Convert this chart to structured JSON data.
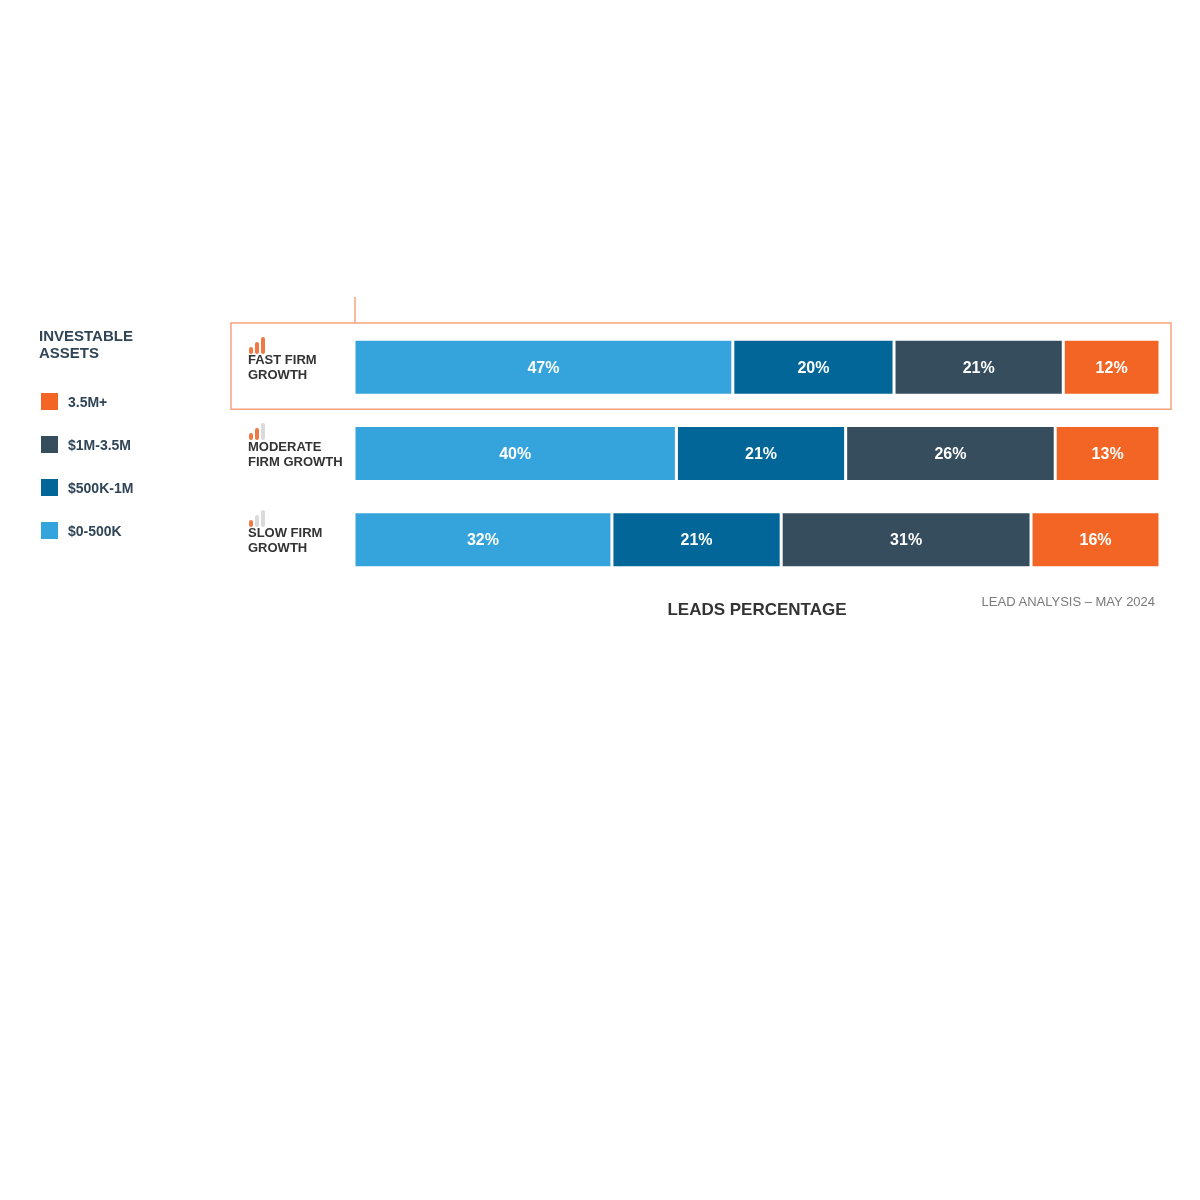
{
  "chart_data": {
    "type": "bar",
    "orientation": "horizontal",
    "stacked": true,
    "categories": [
      "FAST FIRM GROWTH",
      "MODERATE FIRM GROWTH",
      "SLOW FIRM GROWTH"
    ],
    "xlabel": "LEADS PERCENTAGE",
    "legend_title": "INVESTABLE ASSETS",
    "legend": "left",
    "tick_labels": "y",
    "xlim": [
      0,
      100
    ],
    "annotations": [
      "LEAD ANALYSIS – MAY 2024"
    ],
    "series": [
      {
        "name": "$0-500K",
        "color": "#35a4dd",
        "values": [
          47,
          40,
          32
        ],
        "value_labels": [
          "47%",
          "40%",
          "32%"
        ]
      },
      {
        "name": "$500K-1M",
        "color": "#036699",
        "values": [
          20,
          21,
          21
        ],
        "value_labels": [
          "20%",
          "21%",
          "21%"
        ]
      },
      {
        "name": "$1M-3.5M",
        "color": "#364d5e",
        "values": [
          21,
          26,
          31
        ],
        "value_labels": [
          "21%",
          "26%",
          "31%"
        ]
      },
      {
        "name": "3.5M+",
        "color": "#f26524",
        "values": [
          12,
          13,
          16
        ],
        "value_labels": [
          "12%",
          "13%",
          "16%"
        ]
      }
    ]
  }
}
